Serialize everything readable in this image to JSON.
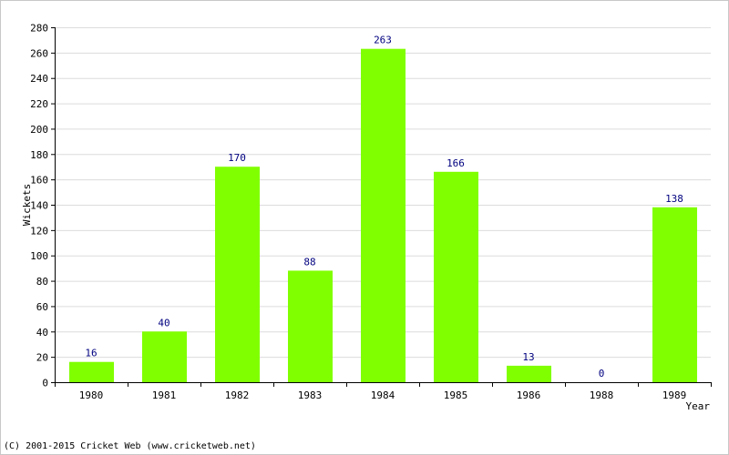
{
  "chart_data": {
    "type": "bar",
    "categories": [
      "1980",
      "1981",
      "1982",
      "1983",
      "1984",
      "1985",
      "1986",
      "1988",
      "1989"
    ],
    "values": [
      16,
      40,
      170,
      88,
      263,
      166,
      13,
      0,
      138
    ],
    "xlabel": "Year",
    "ylabel": "Wickets",
    "ylim": [
      0,
      280
    ],
    "yticks": [
      0,
      20,
      40,
      60,
      80,
      100,
      120,
      140,
      160,
      180,
      200,
      220,
      240,
      260,
      280
    ],
    "bar_color": "#80ff00",
    "value_label_color": "#000080",
    "grid": true
  },
  "footer": {
    "copyright": "(C) 2001-2015 Cricket Web (www.cricketweb.net)"
  }
}
